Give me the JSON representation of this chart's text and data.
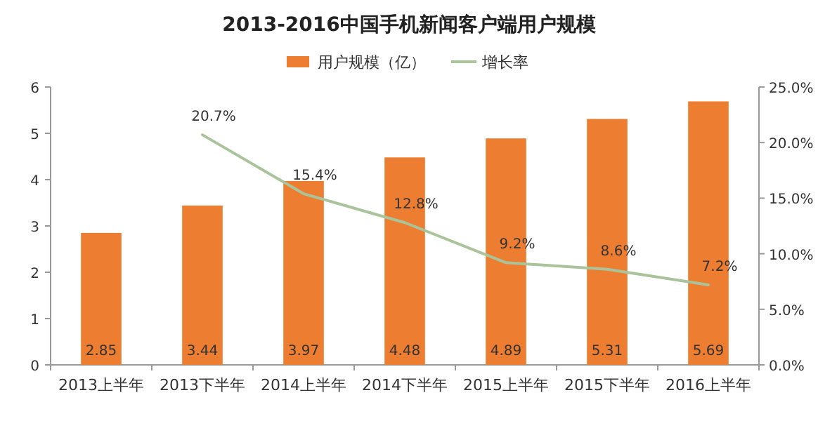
{
  "chart_data": {
    "type": "bar",
    "title": "2013-2016中国手机新闻客户端用户规模",
    "categories": [
      "2013上半年",
      "2013下半年",
      "2014上半年",
      "2014下半年",
      "2015上半年",
      "2015下半年",
      "2016上半年"
    ],
    "series": [
      {
        "name": "用户规模（亿）",
        "color": "#ed7d31",
        "values": [
          2.85,
          3.44,
          3.97,
          4.48,
          4.89,
          5.31,
          5.69
        ],
        "value_labels": [
          "2.85",
          "3.44",
          "3.97",
          "4.48",
          "4.89",
          "5.31",
          "5.69"
        ]
      },
      {
        "name": "增长率",
        "type": "line",
        "axis": "y2",
        "color": "#a9c49a",
        "values": [
          null,
          20.7,
          15.4,
          12.8,
          9.2,
          8.6,
          7.2
        ],
        "value_labels": [
          null,
          "20.7%",
          "15.4%",
          "12.8%",
          "9.2%",
          "8.6%",
          "7.2%"
        ]
      }
    ],
    "ylim": [
      0,
      6
    ],
    "yticks": [
      0,
      1,
      2,
      3,
      4,
      5,
      6
    ],
    "y2lim": [
      0,
      25
    ],
    "y2ticks": [
      {
        "value": 0,
        "label": "0.0%"
      },
      {
        "value": 5,
        "label": "5.0%"
      },
      {
        "value": 10,
        "label": "10.0%"
      },
      {
        "value": 15,
        "label": "15.0%"
      },
      {
        "value": 20,
        "label": "20.0%"
      },
      {
        "value": 25,
        "label": "25.0%"
      }
    ],
    "legend": "top",
    "grid": false,
    "marker": "none"
  }
}
